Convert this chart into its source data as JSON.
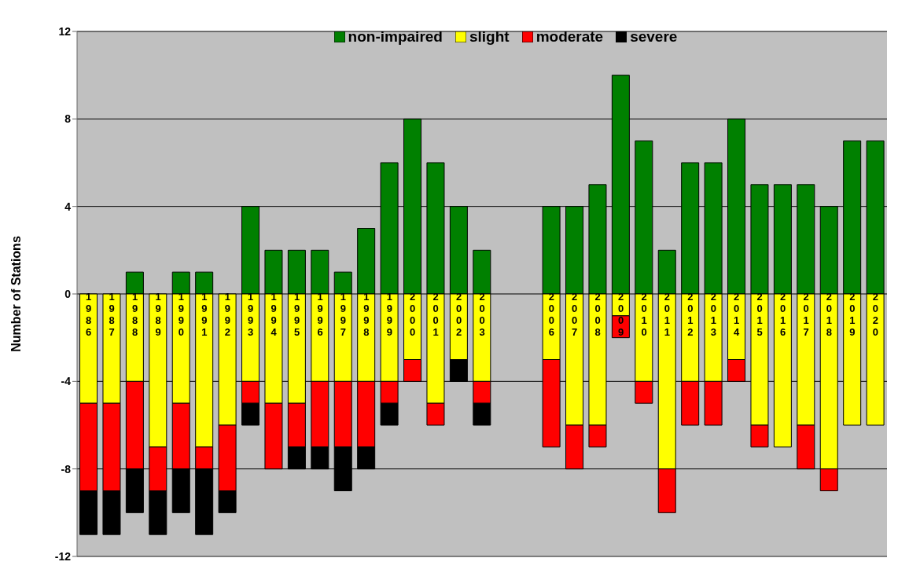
{
  "chart_data": {
    "type": "bar",
    "stacked": true,
    "ylabel": "Number of Stations",
    "categories": [
      "1986",
      "1987",
      "1988",
      "1989",
      "1990",
      "1991",
      "1992",
      "1993",
      "1994",
      "1995",
      "1996",
      "1997",
      "1998",
      "1999",
      "2000",
      "2001",
      "2002",
      "2003",
      null,
      null,
      "2006",
      "2007",
      "2008",
      "2009",
      "2010",
      "2011",
      "2012",
      "2013",
      "2014",
      "2015",
      "2016",
      "2017",
      "2018",
      "2019",
      "2020"
    ],
    "series": [
      {
        "name": "non-impaired",
        "color": "#008000",
        "values": [
          0,
          0,
          1,
          0,
          1,
          1,
          0,
          4,
          2,
          2,
          2,
          1,
          3,
          6,
          8,
          6,
          4,
          2,
          null,
          null,
          4,
          4,
          5,
          10,
          7,
          2,
          6,
          6,
          8,
          5,
          5,
          5,
          4,
          7,
          7
        ]
      },
      {
        "name": "slight",
        "color": "#ffff00",
        "values": [
          -5,
          -5,
          -4,
          -7,
          -5,
          -7,
          -6,
          -4,
          -5,
          -5,
          -4,
          -4,
          -4,
          -4,
          -3,
          -5,
          -3,
          -4,
          null,
          null,
          -3,
          -6,
          -6,
          -1,
          -4,
          -8,
          -4,
          -4,
          -3,
          -6,
          -7,
          -6,
          -8,
          -6,
          -6
        ]
      },
      {
        "name": "moderate",
        "color": "#ff0000",
        "values": [
          -4,
          -4,
          -4,
          -2,
          -3,
          -1,
          -3,
          -1,
          -3,
          -2,
          -3,
          -3,
          -3,
          -1,
          -1,
          -1,
          0,
          -1,
          null,
          null,
          -4,
          -2,
          -1,
          -1,
          -1,
          -2,
          -2,
          -2,
          -1,
          -1,
          0,
          -2,
          -1,
          0,
          0
        ]
      },
      {
        "name": "severe",
        "color": "#000000",
        "values": [
          -2,
          -2,
          -2,
          -2,
          -2,
          -3,
          -1,
          -1,
          0,
          -1,
          -1,
          -2,
          -1,
          -1,
          0,
          0,
          -1,
          -1,
          null,
          null,
          0,
          0,
          0,
          0,
          0,
          0,
          0,
          0,
          0,
          0,
          0,
          0,
          0,
          0,
          0
        ]
      }
    ],
    "ylim": [
      -12,
      12
    ],
    "yticks": [
      -12,
      -8,
      -4,
      0,
      4,
      8,
      12
    ],
    "grid": "y",
    "legend": "top"
  }
}
